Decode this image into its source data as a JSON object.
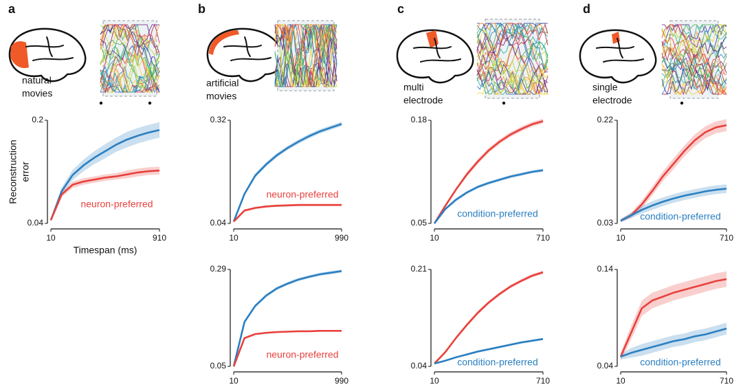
{
  "chart_data": [
    {
      "type": "line",
      "panel": "a",
      "subtitle": [
        "natural",
        "movies"
      ],
      "ylabel": [
        "Reconstruction",
        "error"
      ],
      "xlabel": "Timespan (ms)",
      "x": [
        10,
        100,
        190,
        280,
        370,
        460,
        550,
        640,
        730,
        820,
        910
      ],
      "xlim": [
        10,
        910
      ],
      "xticks": [
        10,
        910
      ],
      "ylim": [
        0.04,
        0.2
      ],
      "yticks": [
        0.04,
        0.2
      ],
      "annotation": "neuron-preferred",
      "annotation_color": "#e8413c",
      "series": [
        {
          "color": "#2a7fc1",
          "values": [
            0.045,
            0.09,
            0.115,
            0.13,
            0.142,
            0.152,
            0.162,
            0.17,
            0.176,
            0.181,
            0.185
          ],
          "errors": [
            0.002,
            0.006,
            0.008,
            0.009,
            0.01,
            0.011,
            0.011,
            0.012,
            0.012,
            0.012,
            0.012
          ]
        },
        {
          "color": "#e8413c",
          "values": [
            0.045,
            0.085,
            0.1,
            0.105,
            0.108,
            0.111,
            0.113,
            0.116,
            0.119,
            0.121,
            0.122
          ],
          "errors": [
            0.002,
            0.004,
            0.005,
            0.005,
            0.005,
            0.005,
            0.005,
            0.006,
            0.006,
            0.006,
            0.006
          ]
        }
      ]
    },
    {
      "type": "line",
      "panel": "b",
      "subtitle": [
        "artificial",
        "movies"
      ],
      "x": [
        10,
        108,
        206,
        304,
        402,
        500,
        598,
        696,
        794,
        892,
        990
      ],
      "xlim": [
        10,
        990
      ],
      "xticks": [
        10,
        990
      ],
      "ylim": [
        0.04,
        0.32
      ],
      "yticks": [
        0.04,
        0.32
      ],
      "annotation": "neuron-preferred",
      "annotation_color": "#e8413c",
      "series": [
        {
          "color": "#2a7fc1",
          "values": [
            0.045,
            0.12,
            0.17,
            0.2,
            0.225,
            0.245,
            0.262,
            0.277,
            0.29,
            0.3,
            0.31
          ],
          "errors": [
            0.002,
            0.005,
            0.006,
            0.006,
            0.006,
            0.006,
            0.006,
            0.006,
            0.006,
            0.006,
            0.006
          ]
        },
        {
          "color": "#e8413c",
          "values": [
            0.045,
            0.075,
            0.082,
            0.086,
            0.088,
            0.089,
            0.09,
            0.09,
            0.09,
            0.09,
            0.09
          ],
          "errors": [
            0.002,
            0.003,
            0.003,
            0.003,
            0.003,
            0.003,
            0.003,
            0.003,
            0.003,
            0.003,
            0.003
          ]
        }
      ]
    },
    {
      "type": "line",
      "x": [
        10,
        108,
        206,
        304,
        402,
        500,
        598,
        696,
        794,
        892,
        990
      ],
      "xlim": [
        10,
        990
      ],
      "xticks": [
        10,
        990
      ],
      "ylim": [
        0.05,
        0.29
      ],
      "yticks": [
        0.05,
        0.29
      ],
      "annotation": "neuron-preferred",
      "annotation_color": "#e8413c",
      "series": [
        {
          "color": "#2a7fc1",
          "values": [
            0.05,
            0.16,
            0.2,
            0.225,
            0.243,
            0.255,
            0.265,
            0.272,
            0.278,
            0.282,
            0.286
          ],
          "errors": [
            0.002,
            0.004,
            0.004,
            0.004,
            0.004,
            0.004,
            0.004,
            0.004,
            0.004,
            0.004,
            0.004
          ]
        },
        {
          "color": "#e8413c",
          "values": [
            0.05,
            0.12,
            0.13,
            0.133,
            0.135,
            0.136,
            0.137,
            0.137,
            0.138,
            0.138,
            0.138
          ],
          "errors": [
            0.001,
            0.002,
            0.002,
            0.002,
            0.002,
            0.002,
            0.002,
            0.002,
            0.002,
            0.002,
            0.002
          ]
        }
      ]
    },
    {
      "type": "line",
      "panel": "c",
      "subtitle": [
        "multi",
        "electrode"
      ],
      "x": [
        10,
        80,
        150,
        220,
        290,
        360,
        430,
        500,
        570,
        640,
        710
      ],
      "xlim": [
        10,
        710
      ],
      "xticks": [
        10,
        710
      ],
      "ylim": [
        0.05,
        0.18
      ],
      "yticks": [
        0.05,
        0.18
      ],
      "annotation": "condition-preferred",
      "annotation_color": "#2a7fc1",
      "series": [
        {
          "color": "#e8413c",
          "values": [
            0.05,
            0.072,
            0.093,
            0.112,
            0.128,
            0.142,
            0.153,
            0.162,
            0.169,
            0.175,
            0.179
          ],
          "errors": [
            0.001,
            0.002,
            0.002,
            0.003,
            0.003,
            0.003,
            0.003,
            0.003,
            0.003,
            0.003,
            0.003
          ]
        },
        {
          "color": "#2a7fc1",
          "values": [
            0.05,
            0.068,
            0.08,
            0.089,
            0.096,
            0.101,
            0.105,
            0.109,
            0.112,
            0.115,
            0.117
          ],
          "errors": [
            0.001,
            0.002,
            0.002,
            0.002,
            0.002,
            0.002,
            0.002,
            0.002,
            0.002,
            0.002,
            0.002
          ]
        }
      ]
    },
    {
      "type": "line",
      "x": [
        10,
        80,
        150,
        220,
        290,
        360,
        430,
        500,
        570,
        640,
        710
      ],
      "xlim": [
        10,
        710
      ],
      "xticks": [
        10,
        710
      ],
      "ylim": [
        0.04,
        0.21
      ],
      "yticks": [
        0.04,
        0.21
      ],
      "annotation": "condition-preferred",
      "annotation_color": "#2a7fc1",
      "series": [
        {
          "color": "#e8413c",
          "values": [
            0.045,
            0.065,
            0.09,
            0.113,
            0.134,
            0.152,
            0.167,
            0.18,
            0.19,
            0.199,
            0.205
          ],
          "errors": [
            0.001,
            0.002,
            0.002,
            0.003,
            0.003,
            0.003,
            0.003,
            0.003,
            0.003,
            0.003,
            0.003
          ]
        },
        {
          "color": "#2a7fc1",
          "values": [
            0.045,
            0.05,
            0.056,
            0.061,
            0.066,
            0.07,
            0.074,
            0.078,
            0.082,
            0.085,
            0.088
          ],
          "errors": [
            0.001,
            0.001,
            0.001,
            0.002,
            0.002,
            0.002,
            0.002,
            0.002,
            0.002,
            0.002,
            0.002
          ]
        }
      ]
    },
    {
      "type": "line",
      "panel": "d",
      "subtitle": [
        "single",
        "electrode"
      ],
      "x": [
        10,
        80,
        150,
        220,
        290,
        360,
        430,
        500,
        570,
        640,
        710
      ],
      "xlim": [
        10,
        710
      ],
      "xticks": [
        10,
        710
      ],
      "ylim": [
        0.03,
        0.22
      ],
      "yticks": [
        0.03,
        0.22
      ],
      "annotation": "condition-preferred",
      "annotation_color": "#2a7fc1",
      "series": [
        {
          "color": "#e8413c",
          "values": [
            0.035,
            0.045,
            0.065,
            0.09,
            0.117,
            0.14,
            0.163,
            0.183,
            0.198,
            0.207,
            0.211
          ],
          "errors": [
            0.003,
            0.005,
            0.007,
            0.008,
            0.009,
            0.01,
            0.01,
            0.011,
            0.011,
            0.011,
            0.011
          ]
        },
        {
          "color": "#2a7fc1",
          "values": [
            0.035,
            0.045,
            0.055,
            0.063,
            0.07,
            0.076,
            0.081,
            0.085,
            0.089,
            0.092,
            0.094
          ],
          "errors": [
            0.003,
            0.005,
            0.007,
            0.008,
            0.008,
            0.008,
            0.008,
            0.008,
            0.008,
            0.008,
            0.008
          ]
        }
      ]
    },
    {
      "type": "line",
      "x": [
        10,
        80,
        150,
        220,
        290,
        360,
        430,
        500,
        570,
        640,
        710
      ],
      "xlim": [
        10,
        710
      ],
      "xticks": [
        10,
        710
      ],
      "ylim": [
        0.04,
        0.14
      ],
      "yticks": [
        0.04,
        0.14
      ],
      "annotation": "condition-preferred",
      "annotation_color": "#2a7fc1",
      "series": [
        {
          "color": "#e8413c",
          "values": [
            0.05,
            0.075,
            0.1,
            0.108,
            0.112,
            0.116,
            0.119,
            0.122,
            0.125,
            0.128,
            0.13
          ],
          "errors": [
            0.004,
            0.007,
            0.008,
            0.008,
            0.008,
            0.008,
            0.008,
            0.008,
            0.008,
            0.008,
            0.008
          ]
        },
        {
          "color": "#2a7fc1",
          "values": [
            0.05,
            0.054,
            0.057,
            0.06,
            0.063,
            0.066,
            0.068,
            0.071,
            0.073,
            0.076,
            0.079
          ],
          "errors": [
            0.003,
            0.005,
            0.006,
            0.006,
            0.006,
            0.006,
            0.006,
            0.006,
            0.006,
            0.006,
            0.006
          ]
        }
      ]
    }
  ]
}
